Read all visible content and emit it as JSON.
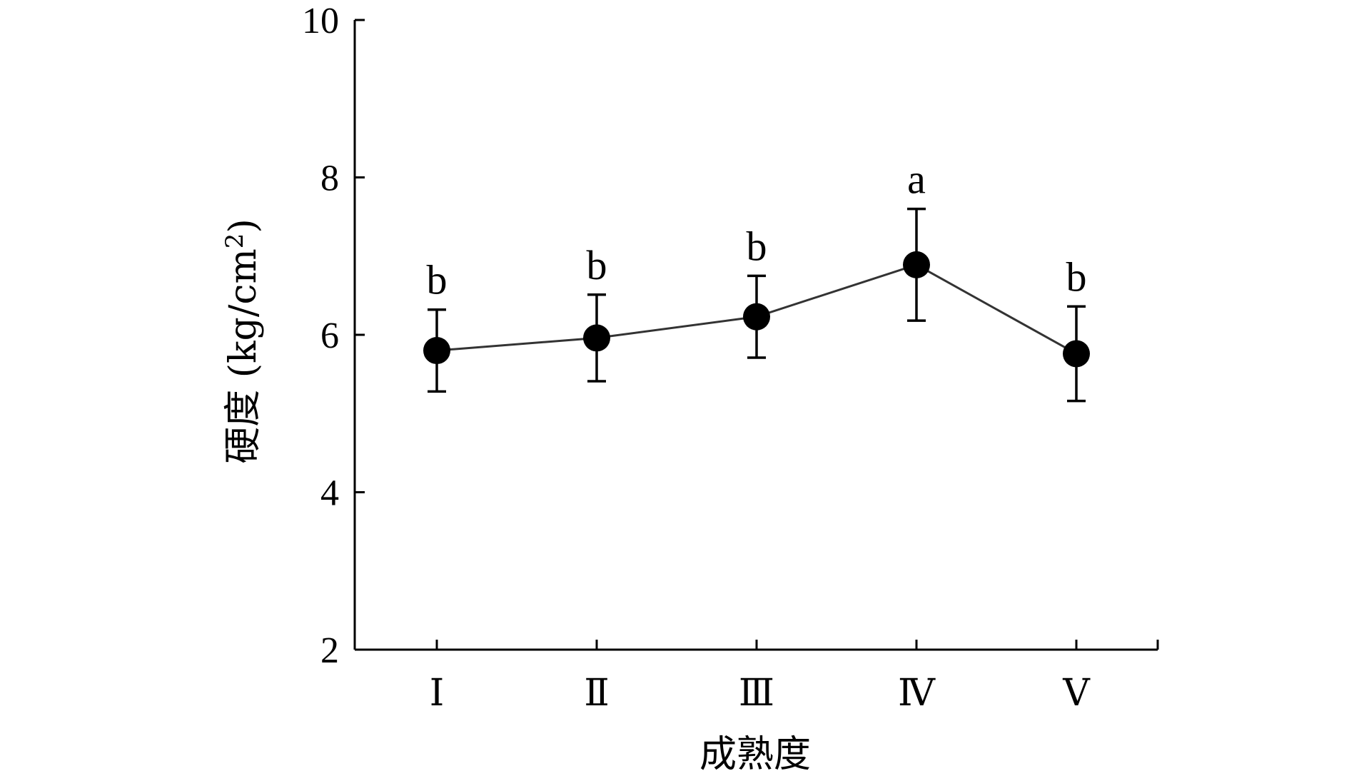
{
  "chart_data": {
    "type": "line",
    "title": "",
    "xlabel": "成熟度",
    "ylabel": "硬度 (kg/cm",
    "ylabel_superscript": "2",
    "ylabel_suffix": ")",
    "categories": [
      "Ⅰ",
      "Ⅱ",
      "Ⅲ",
      "Ⅳ",
      "Ⅴ"
    ],
    "ylim": [
      2,
      10
    ],
    "yticks": [
      2,
      4,
      6,
      8,
      10
    ],
    "grid": false,
    "legend": "none",
    "series": [
      {
        "values": [
          5.8,
          5.96,
          6.23,
          6.89,
          5.76
        ],
        "error": [
          0.52,
          0.55,
          0.52,
          0.71,
          0.6
        ],
        "significance": [
          "b",
          "b",
          "b",
          "a",
          "b"
        ]
      }
    ],
    "colors": {
      "line": "#333333",
      "marker": "#000000",
      "axis": "#000000"
    }
  }
}
